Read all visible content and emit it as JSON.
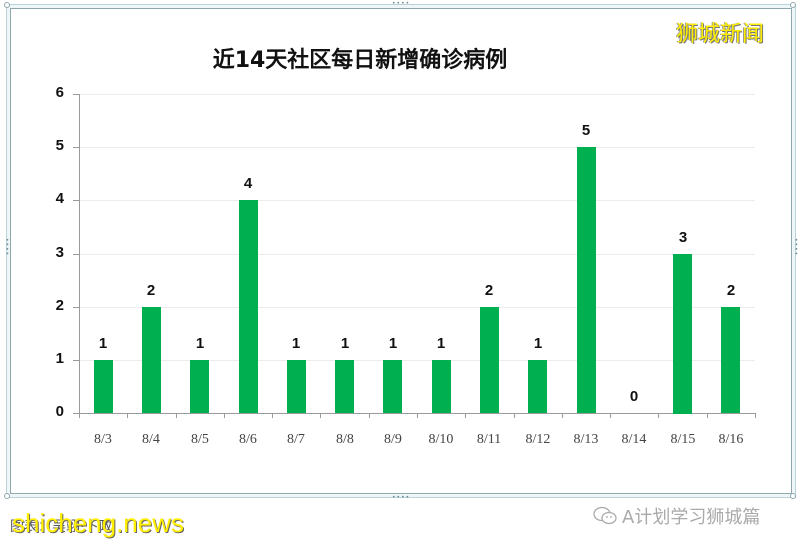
{
  "header": {
    "title": "近14天社区每日新增确诊病例",
    "brand": "狮城新闻"
  },
  "footer": {
    "source": "图表：吴翊·卜政",
    "watermark": "shicheng.news",
    "wechat_account": "A计划学习狮城篇"
  },
  "colors": {
    "bar": "#00b050",
    "brand": "#ffee00",
    "frame": "#8fa7ad"
  },
  "chart_data": {
    "type": "bar",
    "title": "近14天社区每日新增确诊病例",
    "xlabel": "",
    "ylabel": "",
    "ylim": [
      0,
      6
    ],
    "yticks": [
      0,
      1,
      2,
      3,
      4,
      5,
      6
    ],
    "grid": true,
    "legend": null,
    "categories": [
      "8/3",
      "8/4",
      "8/5",
      "8/6",
      "8/7",
      "8/8",
      "8/9",
      "8/10",
      "8/11",
      "8/12",
      "8/13",
      "8/14",
      "8/15",
      "8/16"
    ],
    "values": [
      1,
      2,
      1,
      4,
      1,
      1,
      1,
      1,
      2,
      1,
      5,
      0,
      3,
      2
    ],
    "data_labels": true
  }
}
